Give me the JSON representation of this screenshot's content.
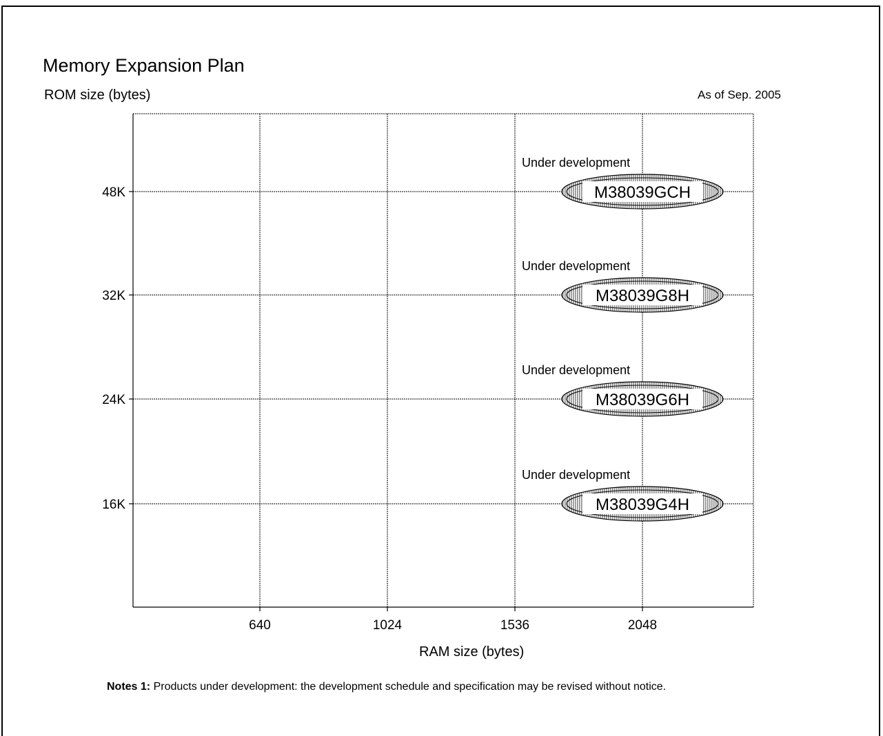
{
  "title": "Memory Expansion Plan",
  "as_of": "As of Sep. 2005",
  "notes": {
    "label": "Notes 1:",
    "text": " Products under development: the development schedule and specification may be revised without notice."
  },
  "colors": {
    "line": "#000000",
    "ellipse_fill": "#c8c8c8",
    "ellipse_inner": "#ffffff"
  },
  "chart_data": {
    "type": "scatter",
    "title": "Memory Expansion Plan",
    "xlabel": "RAM size (bytes)",
    "ylabel": "ROM size (bytes)",
    "x_categories": [
      "640",
      "1024",
      "1536",
      "2048"
    ],
    "y_categories": [
      "16K",
      "24K",
      "32K",
      "48K"
    ],
    "grid": true,
    "points": [
      {
        "x": "2048",
        "y": "48K",
        "label": "M38039GCH",
        "status": "Under development"
      },
      {
        "x": "2048",
        "y": "32K",
        "label": "M38039G8H",
        "status": "Under development"
      },
      {
        "x": "2048",
        "y": "24K",
        "label": "M38039G6H",
        "status": "Under development"
      },
      {
        "x": "2048",
        "y": "16K",
        "label": "M38039G4H",
        "status": "Under development"
      }
    ]
  }
}
